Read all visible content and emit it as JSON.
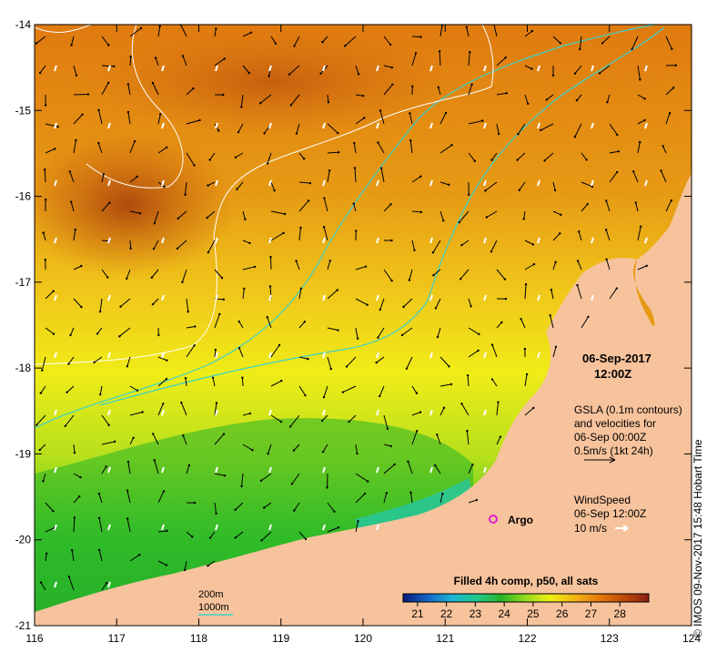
{
  "map": {
    "date_label": "06-Sep-2017",
    "time_label": "12:00Z",
    "gsla": {
      "line1": "GSLA (0.1m contours)",
      "line2": "and velocities for",
      "line3": "06-Sep 00:00Z",
      "line4": "0.5m/s (1kt 24h)"
    },
    "wind": {
      "line1": "WindSpeed",
      "line2": "06-Sep 12:00Z",
      "line3": "10 m/s"
    },
    "argo_label": "Argo",
    "depth_legend": {
      "shallow": "200m",
      "deep": "1000m"
    },
    "colorbar": {
      "title": "Filled 4h comp, p50, all sats",
      "ticks": [
        "21",
        "22",
        "23",
        "24",
        "25",
        "26",
        "27",
        "28"
      ],
      "stops": [
        "#0a1a78",
        "#1466c8",
        "#1cb4d2",
        "#22c88c",
        "#28b428",
        "#96dc1e",
        "#f0f014",
        "#f0b414",
        "#e6780a",
        "#be4b0a",
        "#8c1e14"
      ]
    },
    "credit": "© IMOS 09-Nov-2017 15:48 Hobart Time",
    "x_ticks": [
      "116",
      "117",
      "118",
      "119",
      "120",
      "121",
      "122",
      "123",
      "124"
    ],
    "y_ticks": [
      "-14",
      "-15",
      "-16",
      "-17",
      "-18",
      "-19",
      "-20",
      "-21"
    ],
    "colors": {
      "land": "#f7c39c",
      "contour_200": "#ffffff",
      "contour_1000": "#3cd2c8",
      "argo": "#e020d0"
    }
  }
}
